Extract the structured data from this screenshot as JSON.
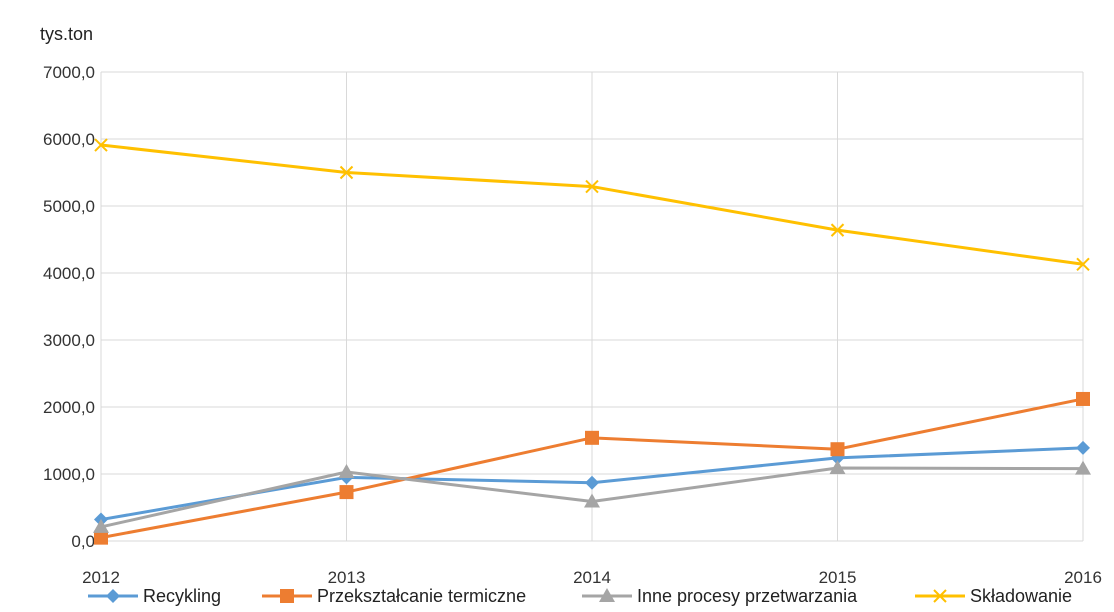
{
  "chart_data": {
    "type": "line",
    "ylabel": "tys.ton",
    "x": [
      "2012",
      "2013",
      "2014",
      "2015",
      "2016"
    ],
    "ylim": [
      0,
      7000
    ],
    "y_ticks": [
      "0,0",
      "1000,0",
      "2000,0",
      "3000,0",
      "4000,0",
      "5000,0",
      "6000,0",
      "7000,0"
    ],
    "grid": true,
    "legend_position": "bottom",
    "series": [
      {
        "name": "Recykling",
        "color": "#5B9BD5",
        "marker": "diamond",
        "values": [
          320,
          950,
          870,
          1240,
          1390
        ]
      },
      {
        "name": "Przekształcanie termiczne",
        "color": "#ED7D31",
        "marker": "square",
        "values": [
          50,
          730,
          1540,
          1370,
          2120
        ]
      },
      {
        "name": "Inne procesy przetwarzania",
        "color": "#A5A5A5",
        "marker": "triangle",
        "values": [
          210,
          1030,
          590,
          1090,
          1080
        ]
      },
      {
        "name": "Składowanie",
        "color": "#FFC000",
        "marker": "x",
        "values": [
          5910,
          5500,
          5290,
          4640,
          4130
        ]
      }
    ]
  }
}
